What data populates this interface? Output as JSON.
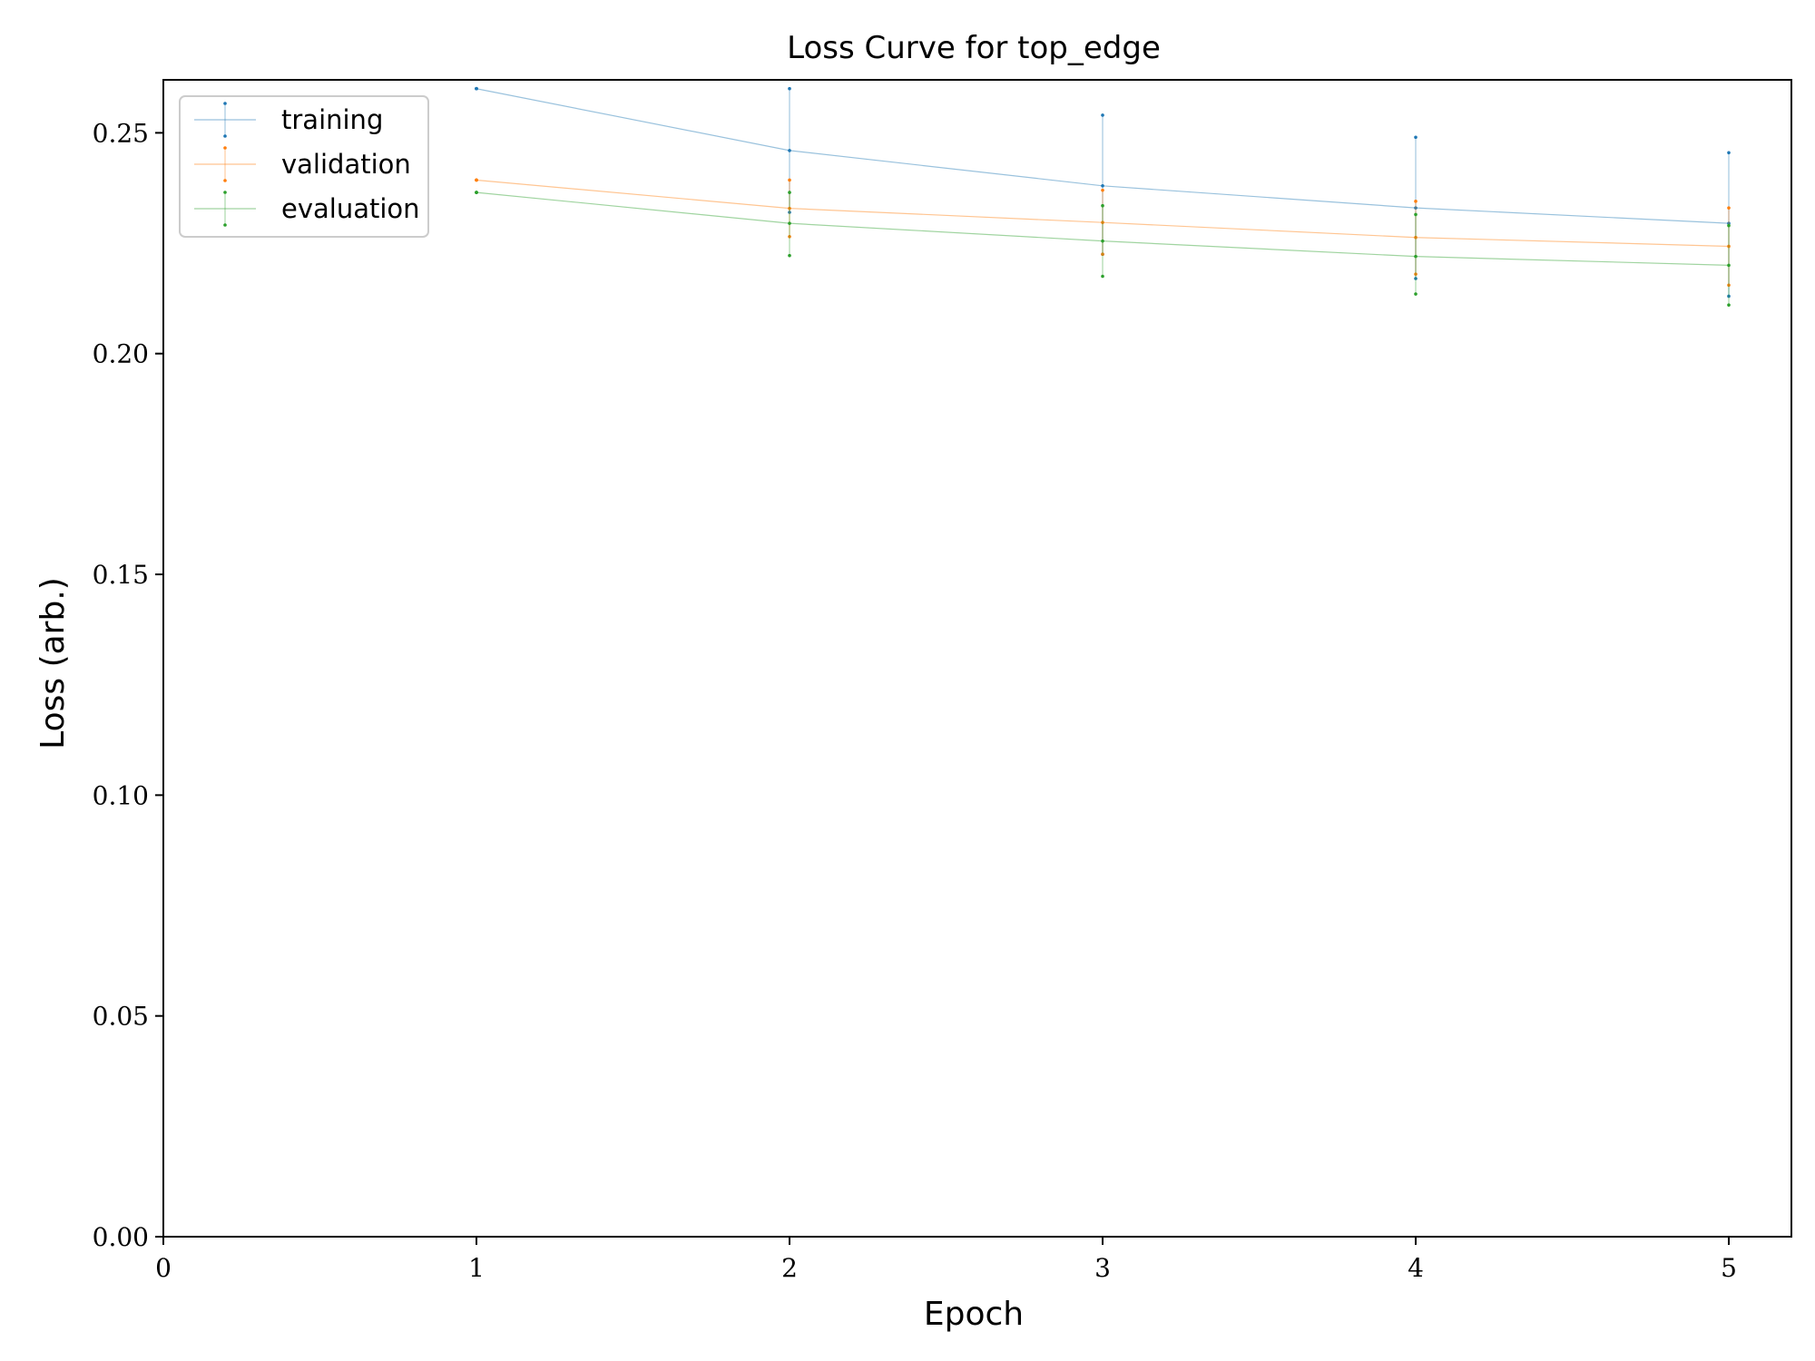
{
  "chart_data": {
    "type": "line",
    "title": "Loss Curve for top_edge",
    "xlabel": "Epoch",
    "ylabel": "Loss (arb.)",
    "xlim": [
      0,
      5.2
    ],
    "ylim": [
      0,
      0.262
    ],
    "xticks": [
      0,
      1,
      2,
      3,
      4,
      5
    ],
    "xtick_labels": [
      "0",
      "1",
      "2",
      "3",
      "4",
      "5"
    ],
    "yticks": [
      0.0,
      0.05,
      0.1,
      0.15,
      0.2,
      0.25
    ],
    "ytick_labels": [
      "0.00",
      "0.05",
      "0.10",
      "0.15",
      "0.20",
      "0.25"
    ],
    "grid": false,
    "legend_position": "top-left",
    "x": [
      1,
      2,
      3,
      4,
      5
    ],
    "series": [
      {
        "name": "training",
        "color": "#1f77b4",
        "values": [
          0.26,
          0.246,
          0.238,
          0.233,
          0.2295
        ],
        "err_low": [
          0.26,
          0.232,
          0.2225,
          0.217,
          0.213
        ],
        "err_high": [
          0.26,
          0.26,
          0.254,
          0.249,
          0.2455
        ]
      },
      {
        "name": "validation",
        "color": "#ff7f0e",
        "values": [
          0.2393,
          0.2329,
          0.2297,
          0.2263,
          0.2243
        ],
        "err_low": [
          0.2393,
          0.2265,
          0.2225,
          0.218,
          0.2155
        ],
        "err_high": [
          0.2393,
          0.2393,
          0.237,
          0.2345,
          0.233
        ]
      },
      {
        "name": "evaluation",
        "color": "#2ca02c",
        "values": [
          0.2365,
          0.2295,
          0.2255,
          0.222,
          0.22
        ],
        "err_low": [
          0.2365,
          0.2222,
          0.2175,
          0.2135,
          0.211
        ],
        "err_high": [
          0.2365,
          0.2365,
          0.2335,
          0.2315,
          0.229
        ]
      }
    ]
  }
}
